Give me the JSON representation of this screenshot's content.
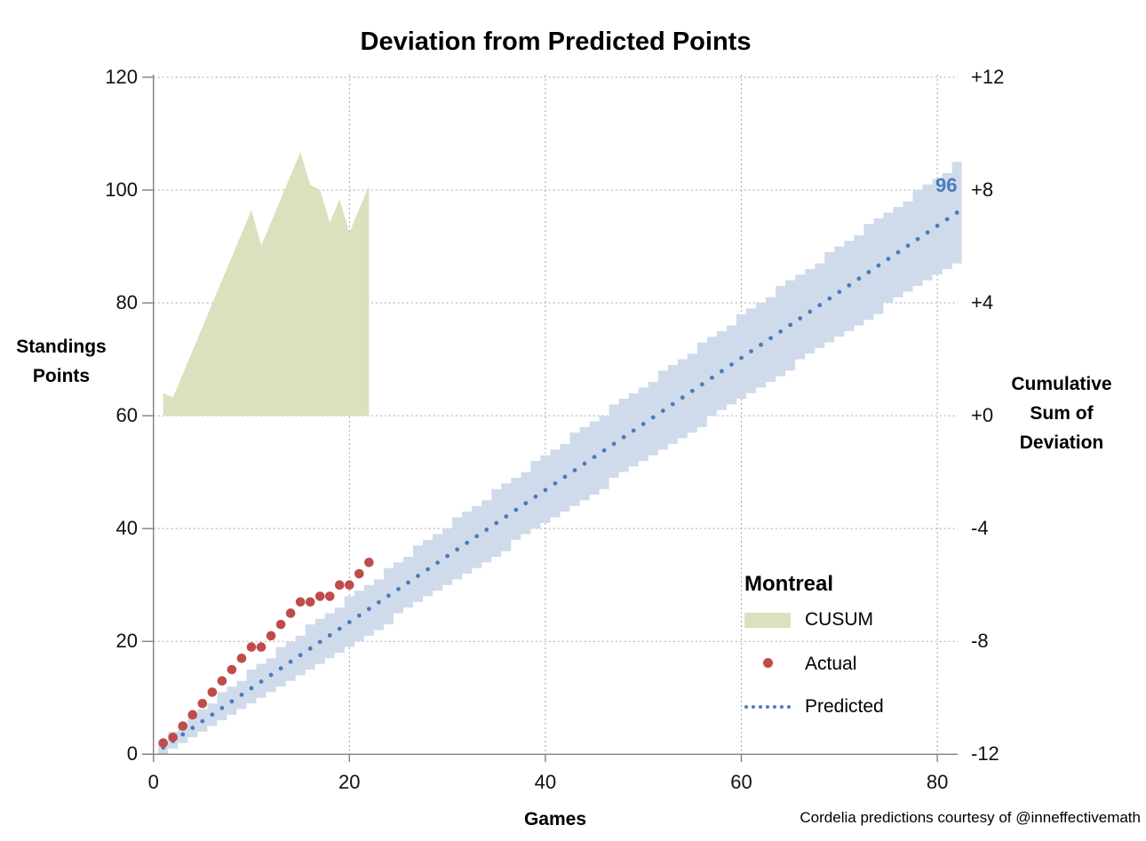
{
  "title": "Deviation from Predicted Points",
  "footer": "Cordelia predictions courtesy of @inneffectivemath",
  "left_axis": {
    "label_lines": [
      "Standings",
      "Points"
    ],
    "tick_labels": [
      "120",
      "100",
      "80",
      "60",
      "40",
      "20",
      "0"
    ],
    "tick_values": [
      120,
      100,
      80,
      60,
      40,
      20,
      0
    ]
  },
  "right_axis": {
    "label_lines": [
      "Cumulative",
      "Sum of",
      "Deviation"
    ],
    "tick_labels": [
      "+12",
      "+8",
      "+4",
      "+0",
      "-4",
      "-8",
      "-12"
    ],
    "tick_values": [
      12,
      8,
      4,
      0,
      -4,
      -8,
      -12
    ]
  },
  "x_axis": {
    "label": "Games",
    "tick_labels": [
      "0",
      "20",
      "40",
      "60",
      "80"
    ],
    "tick_values": [
      0,
      20,
      40,
      60,
      80
    ]
  },
  "legend": {
    "title": "Montreal",
    "items": [
      {
        "label": "CUSUM",
        "type": "area",
        "color": "#d9e1bf"
      },
      {
        "label": "Actual",
        "type": "dot",
        "color": "#bf4c49"
      },
      {
        "label": "Predicted",
        "type": "dotted-line",
        "color": "#4a7cba"
      }
    ]
  },
  "annotation": {
    "text": "96",
    "color": "#4a7cba"
  },
  "colors": {
    "cusum_fill": "#d9e1bf",
    "band_fill": "#cfdbeb",
    "actual": "#bf4c49",
    "predicted": "#4a7cba",
    "grid": "#a6a6a6",
    "axis": "#808080"
  },
  "chart_data": {
    "type": "combo",
    "title": "Deviation from Predicted Points",
    "xlabel": "Games",
    "ylabel_left": "Standings Points",
    "ylabel_right": "Cumulative Sum of Deviation",
    "xlim": [
      0,
      82
    ],
    "ylim_left": [
      0,
      120
    ],
    "ylim_right": [
      -12,
      12
    ],
    "grid": true,
    "legend_position": "lower right",
    "games": [
      1,
      2,
      3,
      4,
      5,
      6,
      7,
      8,
      9,
      10,
      11,
      12,
      13,
      14,
      15,
      16,
      17,
      18,
      19,
      20,
      21,
      22
    ],
    "series": [
      {
        "name": "CUSUM",
        "type": "area",
        "axis": "right",
        "color": "#d9e1bf",
        "values": [
          0.8,
          0.65,
          1.48,
          2.31,
          3.14,
          3.97,
          4.8,
          5.63,
          6.46,
          7.29,
          6.03,
          6.86,
          7.69,
          8.52,
          9.35,
          8.18,
          8.01,
          6.84,
          7.67,
          6.5,
          7.33,
          8.16
        ]
      },
      {
        "name": "Actual",
        "type": "scatter",
        "axis": "left",
        "color": "#bf4c49",
        "values": [
          2,
          3,
          5,
          7,
          9,
          11,
          13,
          15,
          17,
          19,
          19,
          21,
          23,
          25,
          27,
          27,
          28,
          28,
          30,
          30,
          32,
          34
        ]
      },
      {
        "name": "Predicted",
        "type": "dotted_line",
        "axis": "left",
        "color": "#4a7cba",
        "x_start": 1,
        "x_end": 82,
        "per_game": 1.1707,
        "y_end": 96,
        "end_label": "96"
      },
      {
        "name": "Prediction band",
        "type": "stepped_band",
        "axis": "left",
        "color": "#cfdbeb",
        "x_start": 1,
        "x_end": 82,
        "center_per_game": 1.1707,
        "halfwidth_sqrt_coeff": 0.95
      }
    ]
  }
}
